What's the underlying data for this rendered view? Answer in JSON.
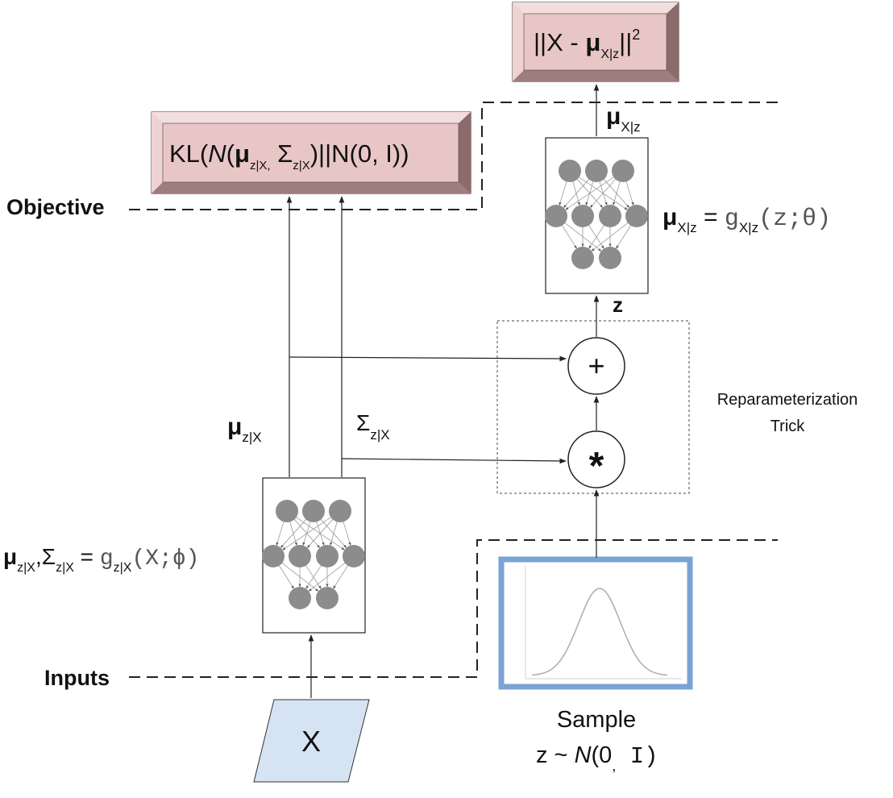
{
  "labels": {
    "objective": "Objective",
    "inputs": "Inputs",
    "reparam_line1": "Reparameterization",
    "reparam_line2": "Trick",
    "sample_line1": "Sample",
    "sample_line2_prefix": "z ~ ",
    "sample_line2_N": "N",
    "sample_line2_args": "(0",
    "sample_line2_comma": ",",
    "sample_line2_I": " I)",
    "z_label": "z",
    "input_x": "X"
  },
  "boxes": {
    "recon_loss": {
      "prefix": "||X - ",
      "mu": "μ",
      "sub": "X|z",
      "suffix": "||",
      "sup": "2"
    },
    "kl_loss": {
      "prefix": "KL(",
      "N": "N",
      "paren": "(",
      "mu": "μ",
      "sub_mu": "z|X,",
      "sigma": " Σ",
      "sub_sigma": "z|X",
      "suffix": ")||N(0, I))"
    }
  },
  "annotations": {
    "mu_x_given_z_top": {
      "symbol": "μ",
      "sub": "X|z"
    },
    "decoder_eq": {
      "symbol": "μ",
      "sub": "X|z",
      "eq": " = ",
      "fn": "g",
      "fn_sub": "X|z",
      "args": "(z;θ)"
    },
    "mu_z_given_x": {
      "symbol": "μ",
      "sub": "z|X"
    },
    "sigma_z_given_x": {
      "symbol": "Σ",
      "sub": "z|X"
    },
    "encoder_eq": {
      "mu": "μ",
      "mu_sub": "z|X",
      "comma": ",",
      "sigma": "Σ",
      "sigma_sub": "z|X",
      "eq": " = ",
      "fn": "g",
      "fn_sub": "z|X",
      "args": "(X;ϕ)"
    }
  },
  "operators": {
    "plus": "+",
    "times": "*"
  },
  "colors": {
    "loss_box_fill": "#e9c6c6",
    "loss_box_side_dark": "#8a6a6a",
    "loss_box_side_light": "#f5e2e2",
    "input_fill": "#d6e3f3",
    "sample_border": "#7aa3d6",
    "neuron_fill": "#8c8c8c",
    "curve": "#b0b0b0"
  }
}
